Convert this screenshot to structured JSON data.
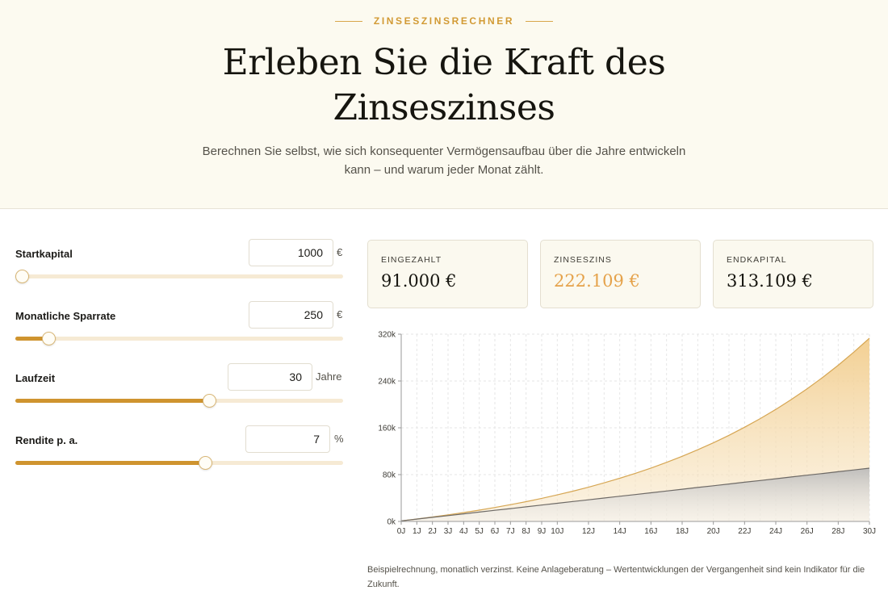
{
  "hero": {
    "eyebrow": "ZINSESZINSRECHNER",
    "title": "Erleben Sie die Kraft des Zinseszinses",
    "subtitle": "Berechnen Sie selbst, wie sich konsequenter Vermögensaufbau über die Jahre entwickeln kann – und warum jeder Monat zählt."
  },
  "controls": [
    {
      "name": "startkapital",
      "label": "Startkapital",
      "value": "1000",
      "unit": "€",
      "fraction": 0.02
    },
    {
      "name": "monatliche-sparrate",
      "label": "Monatliche Sparrate",
      "value": "250",
      "unit": "€",
      "fraction": 0.1
    },
    {
      "name": "laufzeit",
      "label": "Laufzeit",
      "value": "30",
      "unit": "Jahre",
      "fraction": 0.59
    },
    {
      "name": "rendite",
      "label": "Rendite p. a.",
      "value": "7",
      "unit": "%",
      "fraction": 0.58
    }
  ],
  "cards": [
    {
      "name": "eingezahlt",
      "label": "EINGEZAHLT",
      "value": "91.000 €"
    },
    {
      "name": "zinseszins",
      "label": "ZINSESZINS",
      "value": "222.109 €"
    },
    {
      "name": "endkapital",
      "label": "ENDKAPITAL",
      "value": "313.109 €"
    }
  ],
  "colors": {
    "accent": "#d29a34",
    "interest_fill": "#f2cf94",
    "interest_line": "#d6a653",
    "deposit_line": "#6e6a66",
    "deposit_fill": "#c9c9c9"
  },
  "chart_data": {
    "type": "area",
    "x": [
      0,
      1,
      2,
      3,
      4,
      5,
      6,
      7,
      8,
      9,
      10,
      11,
      12,
      13,
      14,
      15,
      16,
      17,
      18,
      19,
      20,
      21,
      22,
      23,
      24,
      25,
      26,
      27,
      28,
      29,
      30
    ],
    "x_ticks": [
      "0J",
      "1J",
      "2J",
      "3J",
      "4J",
      "5J",
      "6J",
      "7J",
      "8J",
      "9J",
      "10J",
      "12J",
      "14J",
      "16J",
      "18J",
      "20J",
      "22J",
      "24J",
      "26J",
      "28J",
      "30J"
    ],
    "x_tick_values": [
      0,
      1,
      2,
      3,
      4,
      5,
      6,
      7,
      8,
      9,
      10,
      12,
      14,
      16,
      18,
      20,
      22,
      24,
      26,
      28,
      30
    ],
    "y_ticks": [
      "0k",
      "80k",
      "160k",
      "240k",
      "320k"
    ],
    "y_tick_values": [
      0,
      80000,
      160000,
      240000,
      320000
    ],
    "ylim": [
      0,
      320000
    ],
    "grid": true,
    "series": [
      {
        "values": [
          1000,
          4177,
          7581,
          11231,
          15144,
          19340,
          23838,
          28662,
          33835,
          39381,
          45328,
          51705,
          58543,
          65874,
          73736,
          82166,
          91205,
          100898,
          111291,
          122435,
          134385,
          147198,
          160937,
          175670,
          191467,
          208406,
          226569,
          246046,
          266929,
          289322,
          313109
        ]
      },
      {
        "values": [
          1000,
          4000,
          7000,
          10000,
          13000,
          16000,
          19000,
          22000,
          25000,
          28000,
          31000,
          34000,
          37000,
          40000,
          43000,
          46000,
          49000,
          52000,
          55000,
          58000,
          61000,
          64000,
          67000,
          70000,
          73000,
          76000,
          79000,
          82000,
          85000,
          88000,
          91000
        ]
      }
    ]
  },
  "disclaimer": "Beispielrechnung, monatlich verzinst. Keine Anlageberatung – Wertentwicklungen der Vergangenheit sind kein Indikator für die Zukunft."
}
